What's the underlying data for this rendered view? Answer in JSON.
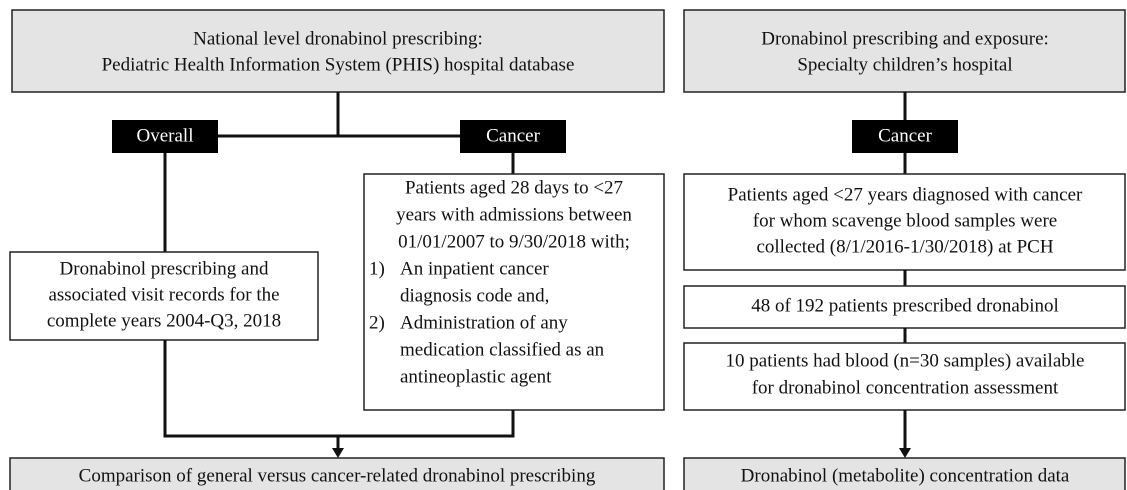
{
  "national": {
    "title": [
      "National level dronabinol prescribing:",
      "Pediatric Health Information System (PHIS) hospital database"
    ],
    "overall": {
      "label": "Overall",
      "box": [
        "Dronabinol prescribing and",
        "associated visit records for the",
        "complete years 2004-Q3, 2018"
      ]
    },
    "cancer": {
      "label": "Cancer",
      "intro": [
        "Patients aged 28 days to <27",
        "years with admissions between",
        "01/01/2007 to 9/30/2018 with;"
      ],
      "items": [
        {
          "number": "1)",
          "lines": [
            "An inpatient cancer",
            "diagnosis code and,"
          ]
        },
        {
          "number": "2)",
          "lines": [
            "Administration of any",
            "medication classified as an",
            "antineoplastic agent"
          ]
        }
      ]
    },
    "result": "Comparison of general versus cancer-related dronabinol prescribing"
  },
  "specialty": {
    "title": [
      "Dronabinol prescribing and exposure:",
      "Specialty children’s hospital"
    ],
    "label": "Cancer",
    "boxes": [
      [
        "Patients aged <27 years diagnosed with cancer",
        "for whom scavenge blood samples were",
        "collected (8/1/2016-1/30/2018) at PCH"
      ],
      [
        "48 of 192 patients prescribed dronabinol"
      ],
      [
        "10 patients had blood (n=30 samples) available",
        "for dronabinol concentration assessment"
      ]
    ],
    "result": "Dronabinol (metabolite) concentration data"
  }
}
